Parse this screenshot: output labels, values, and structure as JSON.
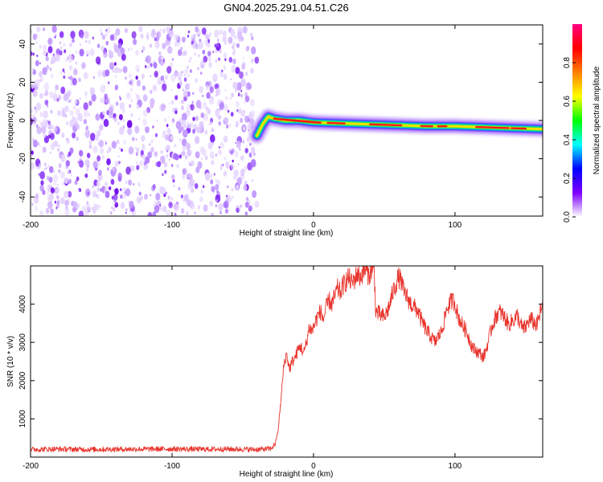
{
  "title": "GN04.2025.291.04.51.C26",
  "chart_data": [
    {
      "type": "heatmap",
      "name": "spectrogram",
      "xlabel": "Height of straight line (km)",
      "ylabel": "Frequency (Hz)",
      "xlim": [
        -200,
        162
      ],
      "ylim": [
        -50,
        50
      ],
      "xticks": [
        -200,
        -100,
        0,
        100
      ],
      "yticks": [
        -40,
        -20,
        0,
        20,
        40
      ],
      "noise_region": {
        "x_from": -200,
        "x_to": -40,
        "freq_from": -50,
        "freq_to": 48
      },
      "signal_track": [
        {
          "x": -40,
          "freq": -8
        },
        {
          "x": -36,
          "freq": -2
        },
        {
          "x": -32,
          "freq": 2
        },
        {
          "x": -28,
          "freq": 1
        },
        {
          "x": -20,
          "freq": 0
        },
        {
          "x": -10,
          "freq": 0
        },
        {
          "x": 0,
          "freq": -1
        },
        {
          "x": 20,
          "freq": -1.5
        },
        {
          "x": 40,
          "freq": -2
        },
        {
          "x": 60,
          "freq": -2.5
        },
        {
          "x": 80,
          "freq": -3
        },
        {
          "x": 100,
          "freq": -3
        },
        {
          "x": 120,
          "freq": -3.5
        },
        {
          "x": 140,
          "freq": -4
        },
        {
          "x": 162,
          "freq": -4.5
        }
      ],
      "colorbar": {
        "label": "Normalized spectral amplitude",
        "range": [
          0,
          1
        ],
        "ticks": [
          "0.0",
          "0.2",
          "0.4",
          "0.6",
          "0.8"
        ],
        "colors": [
          "#ffffff",
          "#7e00ff",
          "#0000ff",
          "#00ffff",
          "#00ff00",
          "#ffff00",
          "#ff7f00",
          "#ff0000",
          "#ff0080"
        ]
      }
    },
    {
      "type": "line",
      "name": "snr",
      "xlabel": "Height of straight line (km)",
      "ylabel": "SNR (10 * v/v)",
      "xlim": [
        -200,
        162
      ],
      "ylim": [
        0,
        5000
      ],
      "xticks": [
        -200,
        -100,
        0,
        100
      ],
      "yticks": [
        1000,
        2000,
        3000,
        4000
      ],
      "color": "#e8342c",
      "series": [
        {
          "name": "SNR",
          "x": [
            -200,
            -180,
            -160,
            -140,
            -120,
            -100,
            -80,
            -60,
            -40,
            -30,
            -27,
            -25,
            -23,
            -21,
            -19,
            -17,
            -15,
            -13,
            -11,
            -9,
            -7,
            -5,
            -3,
            -1,
            1,
            3,
            5,
            7,
            9,
            11,
            13,
            15,
            17,
            19,
            21,
            23,
            25,
            27,
            29,
            31,
            33,
            35,
            37,
            39,
            41,
            43,
            44,
            46,
            48,
            50,
            52,
            54,
            56,
            58,
            60,
            62,
            64,
            66,
            68,
            70,
            72,
            74,
            76,
            78,
            80,
            82,
            84,
            86,
            88,
            90,
            92,
            94,
            96,
            98,
            100,
            102,
            104,
            106,
            108,
            110,
            112,
            114,
            116,
            118,
            120,
            122,
            124,
            126,
            128,
            130,
            132,
            134,
            136,
            138,
            140,
            142,
            144,
            146,
            148,
            150,
            152,
            154,
            156,
            158,
            160,
            162
          ],
          "y": [
            200,
            210,
            200,
            205,
            210,
            215,
            205,
            210,
            200,
            220,
            350,
            700,
            1500,
            2400,
            2700,
            2300,
            2500,
            2600,
            2800,
            2900,
            2700,
            3000,
            3400,
            3300,
            3500,
            3700,
            3800,
            3600,
            3900,
            4100,
            4000,
            4200,
            4400,
            4300,
            4500,
            4600,
            4700,
            4550,
            4650,
            4800,
            4700,
            4850,
            4900,
            4750,
            4900,
            4850,
            3800,
            3750,
            3700,
            3650,
            3800,
            4000,
            4300,
            4500,
            4700,
            4600,
            4300,
            4200,
            4050,
            3950,
            3900,
            3800,
            3600,
            3450,
            3300,
            3200,
            3100,
            3000,
            3150,
            3250,
            3500,
            3850,
            4000,
            4100,
            4050,
            3700,
            3550,
            3400,
            3300,
            3100,
            2900,
            2800,
            2750,
            2700,
            2600,
            2800,
            3100,
            3400,
            3600,
            3750,
            3800,
            3700,
            3600,
            3450,
            3550,
            3600,
            3700,
            3500,
            3350,
            3400,
            3550,
            3600,
            3500,
            3450,
            3750,
            3950
          ]
        }
      ]
    }
  ]
}
